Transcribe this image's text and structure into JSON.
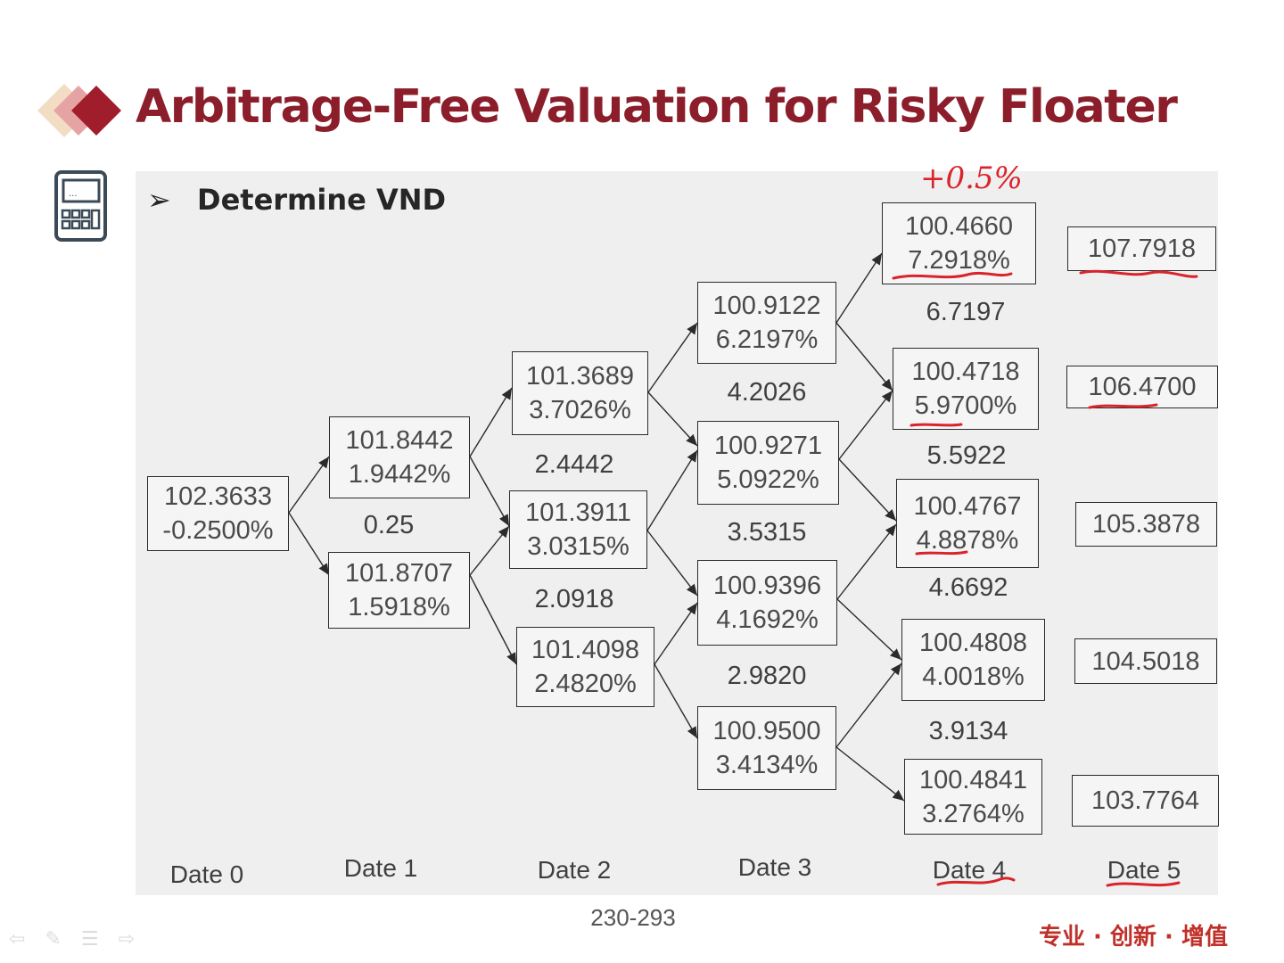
{
  "title": "Arbitrage-Free Valuation for Risky Floater",
  "heading": "Determine VND",
  "heading_bullet": "➢",
  "icons": {
    "logo": "red-diamonds-logo",
    "calculator": "calculator-icon"
  },
  "colors": {
    "title": "#8b1e2a",
    "annotation": "#d9242b",
    "panel": "#efefef",
    "slogan": "#c0302a"
  },
  "tree": {
    "nodes": [
      {
        "id": "n0_0",
        "value": "102.3633",
        "rate": "-0.2500%"
      },
      {
        "id": "n1_0",
        "value": "101.8442",
        "rate": "1.9442%"
      },
      {
        "id": "n1_1",
        "value": "101.8707",
        "rate": "1.5918%"
      },
      {
        "id": "n2_0",
        "value": "101.3689",
        "rate": "3.7026%"
      },
      {
        "id": "n2_1",
        "value": "101.3911",
        "rate": "3.0315%"
      },
      {
        "id": "n2_2",
        "value": "101.4098",
        "rate": "2.4820%"
      },
      {
        "id": "n3_0",
        "value": "100.9122",
        "rate": "6.2197%"
      },
      {
        "id": "n3_1",
        "value": "100.9271",
        "rate": "5.0922%"
      },
      {
        "id": "n3_2",
        "value": "100.9396",
        "rate": "4.1692%"
      },
      {
        "id": "n3_3",
        "value": "100.9500",
        "rate": "3.4134%"
      },
      {
        "id": "n4_0",
        "value": "100.4660",
        "rate": "7.2918%"
      },
      {
        "id": "n4_1",
        "value": "100.4718",
        "rate": "5.9700%"
      },
      {
        "id": "n4_2",
        "value": "100.4767",
        "rate": "4.8878%"
      },
      {
        "id": "n4_3",
        "value": "100.4808",
        "rate": "4.0018%"
      },
      {
        "id": "n4_4",
        "value": "100.4841",
        "rate": "3.2764%"
      }
    ],
    "final_values": [
      "107.7918",
      "106.4700",
      "105.3878",
      "104.5018",
      "103.7764"
    ],
    "spread_labels": {
      "d1": [
        "0.25"
      ],
      "d2": [
        "2.4442",
        "2.0918"
      ],
      "d3": [
        "4.2026",
        "3.5315",
        "2.9820"
      ],
      "d4": [
        "6.7197",
        "5.5922",
        "4.6692",
        "3.9134"
      ]
    },
    "dates": [
      "Date 0",
      "Date 1",
      "Date 2",
      "Date 3",
      "Date 4",
      "Date 5"
    ]
  },
  "annotation_text": "+0.5%",
  "page_number": "230-293",
  "slogan": "专业 · 创新 · 增值",
  "nav_icons": [
    "back-arrow-icon",
    "pen-icon",
    "menu-icon",
    "forward-arrow-icon"
  ]
}
